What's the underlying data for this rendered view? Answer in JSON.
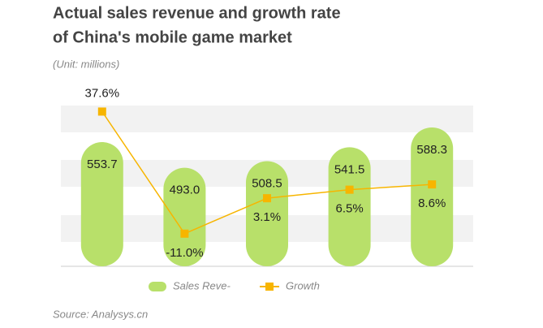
{
  "chart_data": {
    "type": "bar_line",
    "title": "Actual sales revenue and growth rate",
    "title_line2": "of China's mobile game market",
    "subtitle": "(Unit: millions)",
    "source": "Source: Analysys.cn",
    "categories": [
      null,
      null,
      null,
      null,
      null
    ],
    "ylim": [
      260,
      640
    ],
    "y2lim": [
      -24,
      40
    ],
    "series": [
      {
        "name": "Sales Reve-",
        "color": "#b8e06a",
        "values": [
          553.7,
          493.0,
          508.5,
          541.5,
          588.3
        ],
        "value_labels": [
          "553.7",
          "493.0",
          "508.5",
          "541.5",
          "588.3"
        ]
      },
      {
        "name": "Growth",
        "color": "#f7b500",
        "axis": "y2",
        "values": [
          37.6,
          -11.0,
          3.1,
          6.5,
          8.6
        ],
        "value_labels": [
          "37.6%",
          "-11.0%",
          "3.1%",
          "6.5%",
          "8.6%"
        ]
      }
    ]
  }
}
